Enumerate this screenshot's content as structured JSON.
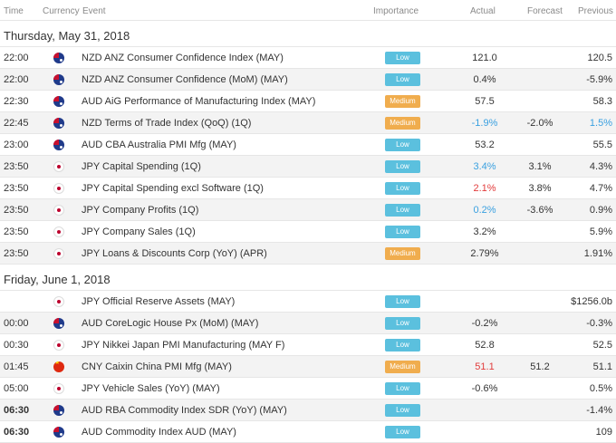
{
  "header": {
    "time": "Time",
    "currency": "Currency",
    "event": "Event",
    "importance": "Importance",
    "actual": "Actual",
    "forecast": "Forecast",
    "previous": "Previous"
  },
  "days": [
    {
      "date": "Thursday, May 31, 2018",
      "rows": [
        {
          "time": "22:00",
          "flag": "nz",
          "event": "NZD ANZ Consumer Confidence Index (MAY)",
          "importance": "Low",
          "actual": "121.0",
          "actual_color": "",
          "forecast": "",
          "previous": "120.5",
          "previous_color": ""
        },
        {
          "time": "22:00",
          "flag": "nz",
          "event": "NZD ANZ Consumer Confidence (MoM) (MAY)",
          "importance": "Low",
          "actual": "0.4%",
          "actual_color": "",
          "forecast": "",
          "previous": "-5.9%",
          "previous_color": ""
        },
        {
          "time": "22:30",
          "flag": "au",
          "event": "AUD AiG Performance of Manufacturing Index (MAY)",
          "importance": "Medium",
          "actual": "57.5",
          "actual_color": "",
          "forecast": "",
          "previous": "58.3",
          "previous_color": ""
        },
        {
          "time": "22:45",
          "flag": "nz",
          "event": "NZD Terms of Trade Index (QoQ) (1Q)",
          "importance": "Medium",
          "actual": "-1.9%",
          "actual_color": "blue",
          "forecast": "-2.0%",
          "previous": "1.5%",
          "previous_color": "blue"
        },
        {
          "time": "23:00",
          "flag": "au",
          "event": "AUD CBA Australia PMI Mfg (MAY)",
          "importance": "Low",
          "actual": "53.2",
          "actual_color": "",
          "forecast": "",
          "previous": "55.5",
          "previous_color": ""
        },
        {
          "time": "23:50",
          "flag": "jp",
          "event": "JPY Capital Spending (1Q)",
          "importance": "Low",
          "actual": "3.4%",
          "actual_color": "blue",
          "forecast": "3.1%",
          "previous": "4.3%",
          "previous_color": ""
        },
        {
          "time": "23:50",
          "flag": "jp",
          "event": "JPY Capital Spending excl Software (1Q)",
          "importance": "Low",
          "actual": "2.1%",
          "actual_color": "red",
          "forecast": "3.8%",
          "previous": "4.7%",
          "previous_color": ""
        },
        {
          "time": "23:50",
          "flag": "jp",
          "event": "JPY Company Profits (1Q)",
          "importance": "Low",
          "actual": "0.2%",
          "actual_color": "blue",
          "forecast": "-3.6%",
          "previous": "0.9%",
          "previous_color": ""
        },
        {
          "time": "23:50",
          "flag": "jp",
          "event": "JPY Company Sales (1Q)",
          "importance": "Low",
          "actual": "3.2%",
          "actual_color": "",
          "forecast": "",
          "previous": "5.9%",
          "previous_color": ""
        },
        {
          "time": "23:50",
          "flag": "jp",
          "event": "JPY Loans & Discounts Corp (YoY) (APR)",
          "importance": "Medium",
          "actual": "2.79%",
          "actual_color": "",
          "forecast": "",
          "previous": "1.91%",
          "previous_color": ""
        }
      ]
    },
    {
      "date": "Friday, June 1, 2018",
      "rows": [
        {
          "time": "",
          "flag": "jp",
          "event": "JPY Official Reserve Assets (MAY)",
          "importance": "Low",
          "actual": "",
          "actual_color": "",
          "forecast": "",
          "previous": "$1256.0b",
          "previous_color": ""
        },
        {
          "time": "00:00",
          "flag": "au",
          "event": "AUD CoreLogic House Px (MoM) (MAY)",
          "importance": "Low",
          "actual": "-0.2%",
          "actual_color": "",
          "forecast": "",
          "previous": "-0.3%",
          "previous_color": ""
        },
        {
          "time": "00:30",
          "flag": "jp",
          "event": "JPY Nikkei Japan PMI Manufacturing (MAY F)",
          "importance": "Low",
          "actual": "52.8",
          "actual_color": "",
          "forecast": "",
          "previous": "52.5",
          "previous_color": ""
        },
        {
          "time": "01:45",
          "flag": "cn",
          "event": "CNY Caixin China PMI Mfg (MAY)",
          "importance": "Medium",
          "actual": "51.1",
          "actual_color": "red",
          "forecast": "51.2",
          "previous": "51.1",
          "previous_color": ""
        },
        {
          "time": "05:00",
          "flag": "jp",
          "event": "JPY Vehicle Sales (YoY) (MAY)",
          "importance": "Low",
          "actual": "-0.6%",
          "actual_color": "",
          "forecast": "",
          "previous": "0.5%",
          "previous_color": ""
        },
        {
          "time": "06:30",
          "flag": "au",
          "event": "AUD RBA Commodity Index SDR (YoY) (MAY)",
          "importance": "Low",
          "actual": "",
          "actual_color": "",
          "forecast": "",
          "previous": "-1.4%",
          "previous_color": "",
          "bold_time": true
        },
        {
          "time": "06:30",
          "flag": "au",
          "event": "AUD Commodity Index AUD (MAY)",
          "importance": "Low",
          "actual": "",
          "actual_color": "",
          "forecast": "",
          "previous": "109",
          "previous_color": "",
          "bold_time": true
        }
      ]
    }
  ],
  "colors": {
    "low": "#5bc0de",
    "medium": "#f0ad4e",
    "beat": "#3aa0e0",
    "miss": "#e23b3b"
  }
}
